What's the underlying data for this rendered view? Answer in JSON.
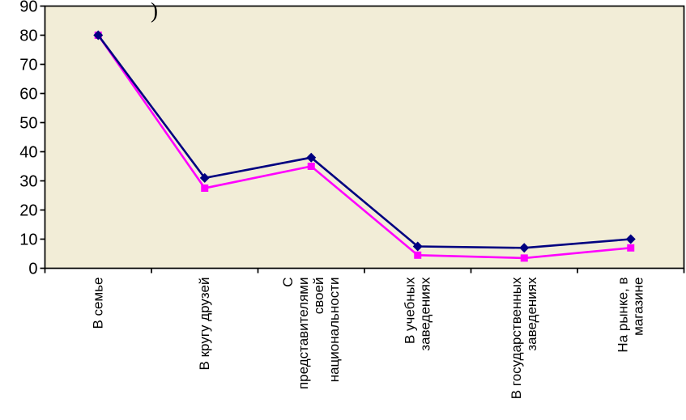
{
  "chart_data": {
    "type": "line",
    "title": ")",
    "categories": [
      "В семье",
      "В кругу друзей",
      "С\nпредставителями\nсвоей\nнациональности",
      "В учебных\nзаведениях",
      "В государственных\nзаведениях",
      "На рынке, в\nмагазине"
    ],
    "series": [
      {
        "name": "series-1-navy",
        "color": "#000080",
        "marker": "diamond",
        "values": [
          80,
          31,
          38,
          7.5,
          7,
          10
        ]
      },
      {
        "name": "series-2-magenta",
        "color": "#FF00FF",
        "marker": "square",
        "values": [
          80,
          27.5,
          35,
          4.5,
          3.5,
          7
        ]
      }
    ],
    "ylim": [
      0,
      90
    ],
    "yticks": [
      0,
      10,
      20,
      30,
      40,
      50,
      60,
      70,
      80,
      90
    ],
    "grid": false,
    "legend": "none",
    "plot_bg_color": "#F2EDD7",
    "axis_color": "#000000"
  }
}
